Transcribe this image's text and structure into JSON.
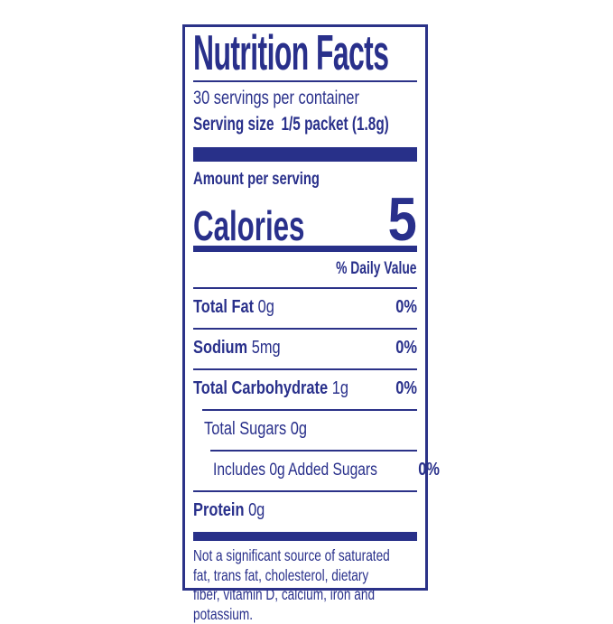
{
  "label": {
    "title": "Nutrition Facts",
    "servings_per_container": "30 servings per container",
    "serving_size": {
      "label": "Serving size",
      "value": "1/5 packet (1.8g)"
    },
    "amount_per_serving": "Amount per serving",
    "calories": {
      "label": "Calories",
      "value": "5"
    },
    "daily_value_header": "% Daily Value",
    "nutrients": [
      {
        "name": "Total Fat",
        "amount": "0g",
        "daily_value": "0%"
      },
      {
        "name": "Sodium",
        "amount": "5mg",
        "daily_value": "0%"
      },
      {
        "name": "Total Carbohydrate",
        "amount": "1g",
        "daily_value": "0%"
      },
      {
        "name": "Total Sugars",
        "amount": "0g",
        "daily_value": ""
      },
      {
        "name": "Includes 0g Added Sugars",
        "amount": "",
        "daily_value": "0%"
      },
      {
        "name": "Protein",
        "amount": "0g",
        "daily_value": ""
      }
    ],
    "footnote_lines": [
      "Not a significant source of saturated",
      "fat, trans fat, cholesterol, dietary",
      "fiber, vitamin D, calcium, iron and",
      "potassium."
    ],
    "colors": {
      "navy": "#2b3288",
      "background": "#ffffff"
    }
  }
}
